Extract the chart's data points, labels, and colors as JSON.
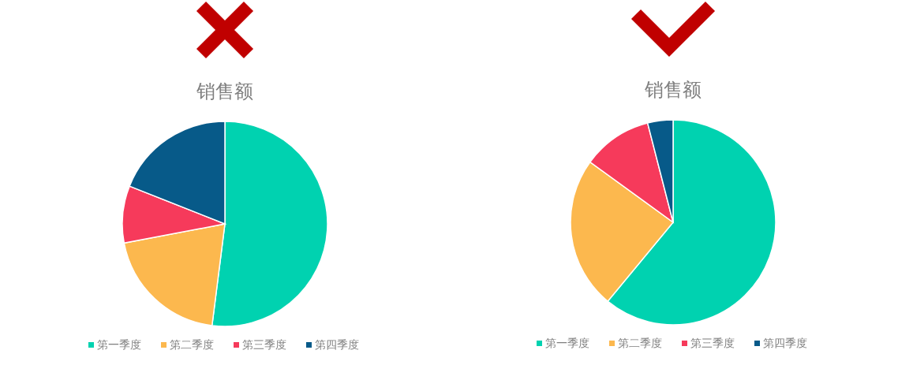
{
  "chart_data": [
    {
      "type": "pie",
      "title": "销售额",
      "categories": [
        "第一季度",
        "第二季度",
        "第三季度",
        "第四季度"
      ],
      "values": [
        52,
        20,
        9,
        19
      ],
      "colors": [
        "#00d2b0",
        "#fcb84e",
        "#f63a5b",
        "#075a89"
      ],
      "legend": "bottom"
    },
    {
      "type": "pie",
      "title": "销售额",
      "categories": [
        "第一季度",
        "第二季度",
        "第三季度",
        "第四季度"
      ],
      "values": [
        61,
        24,
        11,
        4
      ],
      "colors": [
        "#00d2b0",
        "#fcb84e",
        "#f63a5b",
        "#075a89"
      ],
      "legend": "bottom"
    }
  ]
}
